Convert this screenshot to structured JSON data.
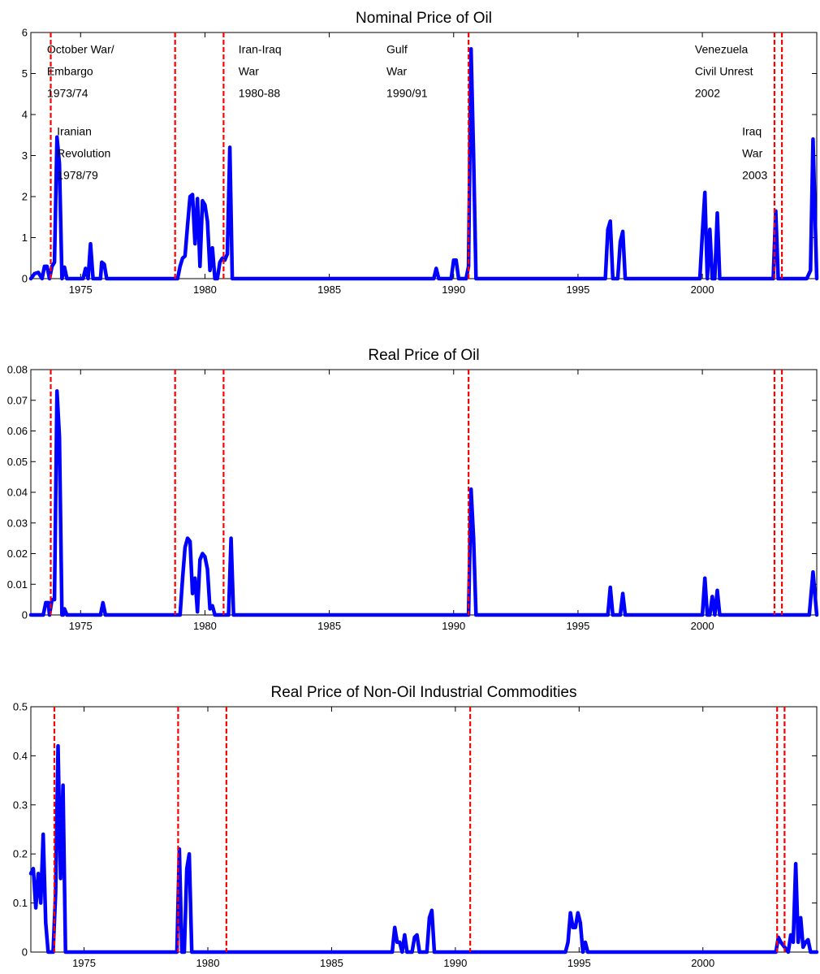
{
  "colors": {
    "series": "#0000ff",
    "event_line": "#ff0000",
    "axis": "#000000",
    "background": "#ffffff"
  },
  "chart_data": [
    {
      "type": "line",
      "title": "Nominal Price of Oil",
      "xlabel": "",
      "ylabel": "",
      "xlim": [
        1973.0,
        2004.6
      ],
      "ylim": [
        0,
        6
      ],
      "yticks": [
        0,
        1,
        2,
        3,
        4,
        5,
        6
      ],
      "ytick_labels": [
        "0",
        "1",
        "2",
        "3",
        "4",
        "5",
        "6"
      ],
      "xticks": [
        1975,
        1980,
        1985,
        1990,
        1995,
        2000
      ],
      "xtick_labels": [
        "1975",
        "1980",
        "1985",
        "1990",
        "1995",
        "2000"
      ],
      "grid": false,
      "event_lines": [
        1973.8,
        1978.8,
        1980.75,
        1990.6,
        2002.9,
        2003.2
      ],
      "annotations": [
        {
          "lines": [
            "October War/",
            "Embargo",
            "1973/74"
          ],
          "x": 1973.65,
          "y": 5.5
        },
        {
          "lines": [
            "Iranian",
            "Revolution",
            "1978/79"
          ],
          "x": 1974.05,
          "y": 3.5
        },
        {
          "lines": [
            "Iran-Iraq",
            "War",
            "1980-88"
          ],
          "x": 1981.35,
          "y": 5.5
        },
        {
          "lines": [
            "Gulf",
            "War",
            "1990/91"
          ],
          "x": 1987.3,
          "y": 5.5
        },
        {
          "lines": [
            "Venezuela",
            "Civil Unrest",
            "2002"
          ],
          "x": 1999.7,
          "y": 5.5
        },
        {
          "lines": [
            "Iraq",
            "War",
            "2003"
          ],
          "x": 2001.6,
          "y": 3.5
        }
      ],
      "series": [
        {
          "x": [
            1973.0,
            1973.15,
            1973.3,
            1973.45,
            1973.55,
            1973.65,
            1973.75,
            1973.85,
            1973.95,
            1974.05,
            1974.15,
            1974.25,
            1974.35,
            1974.45,
            1974.55,
            1974.65,
            1975.1,
            1975.2,
            1975.3,
            1975.4,
            1975.5,
            1975.6,
            1975.8,
            1975.85,
            1975.95,
            1976.05,
            1976.15,
            1978.9,
            1979.0,
            1979.1,
            1979.2,
            1979.3,
            1979.4,
            1979.5,
            1979.6,
            1979.7,
            1979.8,
            1979.9,
            1980.0,
            1980.1,
            1980.2,
            1980.3,
            1980.4,
            1980.5,
            1980.6,
            1980.7,
            1980.8,
            1980.9,
            1981.0,
            1981.1,
            1981.2,
            1981.3,
            1989.2,
            1989.3,
            1989.4,
            1989.9,
            1990.0,
            1990.1,
            1990.2,
            1990.5,
            1990.6,
            1990.7,
            1990.8,
            1990.9,
            1991.0,
            1996.1,
            1996.2,
            1996.3,
            1996.4,
            1996.5,
            1996.6,
            1996.7,
            1996.8,
            1996.9,
            1997.0,
            1999.9,
            2000.0,
            2000.1,
            2000.2,
            2000.3,
            2000.4,
            2000.5,
            2000.6,
            2000.7,
            2000.8,
            2000.9,
            2001.0,
            2002.85,
            2002.95,
            2003.05,
            2003.15,
            2004.2,
            2004.35,
            2004.45,
            2004.6
          ],
          "values": [
            0.0,
            0.12,
            0.15,
            0.0,
            0.3,
            0.3,
            0.0,
            0.3,
            0.4,
            3.45,
            2.8,
            0.0,
            0.28,
            0.0,
            0.0,
            0.0,
            0.0,
            0.25,
            0.0,
            0.85,
            0.0,
            0.0,
            0.0,
            0.4,
            0.35,
            0.0,
            0.0,
            0.0,
            0.3,
            0.5,
            0.55,
            1.3,
            2.0,
            2.05,
            0.85,
            1.95,
            0.3,
            1.9,
            1.8,
            1.4,
            0.2,
            0.75,
            0.0,
            0.0,
            0.4,
            0.5,
            0.45,
            0.6,
            3.2,
            0.0,
            0.0,
            0.0,
            0.0,
            0.25,
            0.0,
            0.0,
            0.45,
            0.45,
            0.0,
            0.0,
            0.3,
            5.6,
            3.0,
            0.0,
            0.0,
            0.0,
            1.2,
            1.4,
            0.0,
            0.0,
            0.0,
            0.9,
            1.15,
            0.0,
            0.0,
            0.0,
            1.1,
            2.1,
            0.0,
            1.2,
            0.0,
            0.0,
            1.6,
            0.0,
            0.0,
            0.0,
            0.0,
            0.0,
            1.65,
            0.0,
            0.0,
            0.0,
            0.2,
            3.4,
            0.0
          ]
        }
      ]
    },
    {
      "type": "line",
      "title": "Real Price of Oil",
      "xlabel": "",
      "ylabel": "",
      "xlim": [
        1973.0,
        2004.6
      ],
      "ylim": [
        0,
        0.08
      ],
      "yticks": [
        0,
        0.01,
        0.02,
        0.03,
        0.04,
        0.05,
        0.06,
        0.07,
        0.08
      ],
      "ytick_labels": [
        "0",
        "0.01",
        "0.02",
        "0.03",
        "0.04",
        "0.05",
        "0.06",
        "0.07",
        "0.08"
      ],
      "xticks": [
        1975,
        1980,
        1985,
        1990,
        1995,
        2000
      ],
      "xtick_labels": [
        "1975",
        "1980",
        "1985",
        "1990",
        "1995",
        "2000"
      ],
      "grid": false,
      "event_lines": [
        1973.8,
        1978.8,
        1980.75,
        1990.6,
        2002.9,
        2003.2
      ],
      "annotations": [],
      "series": [
        {
          "x": [
            1973.0,
            1973.5,
            1973.6,
            1973.7,
            1973.75,
            1973.85,
            1973.95,
            1974.05,
            1974.15,
            1974.25,
            1974.3,
            1974.35,
            1974.45,
            1975.8,
            1975.9,
            1976.0,
            1979.0,
            1979.1,
            1979.2,
            1979.3,
            1979.4,
            1979.5,
            1979.6,
            1979.7,
            1979.8,
            1979.9,
            1980.0,
            1980.1,
            1980.2,
            1980.3,
            1980.4,
            1980.5,
            1980.6,
            1980.95,
            1981.05,
            1981.15,
            1990.6,
            1990.7,
            1990.8,
            1990.9,
            1991.0,
            1996.2,
            1996.3,
            1996.4,
            1996.7,
            1996.8,
            1996.9,
            1997.0,
            2000.0,
            2000.1,
            2000.2,
            2000.3,
            2000.4,
            2000.5,
            2000.6,
            2000.7,
            2000.8,
            2004.3,
            2004.45,
            2004.6
          ],
          "values": [
            0.0,
            0.0,
            0.004,
            0.004,
            0.0,
            0.005,
            0.005,
            0.073,
            0.058,
            0.0,
            0.0,
            0.002,
            0.0,
            0.0,
            0.004,
            0.0,
            0.0,
            0.012,
            0.022,
            0.025,
            0.024,
            0.007,
            0.012,
            0.001,
            0.018,
            0.02,
            0.019,
            0.015,
            0.002,
            0.003,
            0.0,
            0.0,
            0.0,
            0.0,
            0.025,
            0.0,
            0.0,
            0.041,
            0.025,
            0.0,
            0.0,
            0.0,
            0.009,
            0.0,
            0.0,
            0.007,
            0.0,
            0.0,
            0.0,
            0.012,
            0.0,
            0.0,
            0.006,
            0.0,
            0.008,
            0.0,
            0.0,
            0.0,
            0.014,
            0.0
          ]
        }
      ]
    },
    {
      "type": "line",
      "title": "Real Price of Non-Oil Industrial Commodities",
      "xlabel": "",
      "ylabel": "",
      "xlim": [
        1972.85,
        2004.6
      ],
      "ylim": [
        0,
        0.5
      ],
      "yticks": [
        0,
        0.1,
        0.2,
        0.3,
        0.4,
        0.5
      ],
      "ytick_labels": [
        "0",
        "0.1",
        "0.2",
        "0.3",
        "0.4",
        "0.5"
      ],
      "xticks": [
        1975,
        1980,
        1985,
        1990,
        1995,
        2000
      ],
      "xtick_labels": [
        "1975",
        "1980",
        "1985",
        "1990",
        "1995",
        "2000"
      ],
      "grid": false,
      "event_lines": [
        1973.8,
        1978.8,
        1980.75,
        1990.6,
        2003.0,
        2003.3
      ],
      "annotations": [],
      "series": [
        {
          "x": [
            1972.85,
            1972.95,
            1973.05,
            1973.15,
            1973.25,
            1973.35,
            1973.45,
            1973.55,
            1973.65,
            1973.75,
            1973.85,
            1973.95,
            1974.05,
            1974.15,
            1974.25,
            1974.35,
            1978.75,
            1978.85,
            1978.95,
            1979.05,
            1979.15,
            1979.25,
            1979.35,
            1987.45,
            1987.55,
            1987.65,
            1987.75,
            1987.85,
            1987.95,
            1988.05,
            1988.25,
            1988.35,
            1988.45,
            1988.55,
            1988.85,
            1988.95,
            1989.05,
            1989.15,
            1994.45,
            1994.55,
            1994.65,
            1994.75,
            1994.85,
            1994.95,
            1995.05,
            1995.15,
            1995.25,
            1995.35,
            1995.45,
            2002.95,
            2003.05,
            2003.15,
            2003.45,
            2003.55,
            2003.65,
            2003.75,
            2003.85,
            2003.95,
            2004.05,
            2004.15,
            2004.25,
            2004.35,
            2004.45,
            2004.6
          ],
          "values": [
            0.16,
            0.17,
            0.09,
            0.16,
            0.1,
            0.24,
            0.06,
            0.0,
            0.0,
            0.0,
            0.12,
            0.42,
            0.15,
            0.34,
            0.0,
            0.0,
            0.0,
            0.21,
            0.0,
            0.0,
            0.17,
            0.2,
            0.0,
            0.0,
            0.05,
            0.02,
            0.02,
            0.0,
            0.035,
            0.0,
            0.0,
            0.03,
            0.035,
            0.0,
            0.0,
            0.07,
            0.085,
            0.0,
            0.0,
            0.02,
            0.08,
            0.05,
            0.05,
            0.08,
            0.06,
            0.0,
            0.02,
            0.0,
            0.0,
            0.0,
            0.03,
            0.02,
            0.0,
            0.035,
            0.02,
            0.18,
            0.02,
            0.07,
            0.01,
            0.02,
            0.025,
            0.0,
            0.0,
            0.0
          ]
        }
      ]
    }
  ]
}
